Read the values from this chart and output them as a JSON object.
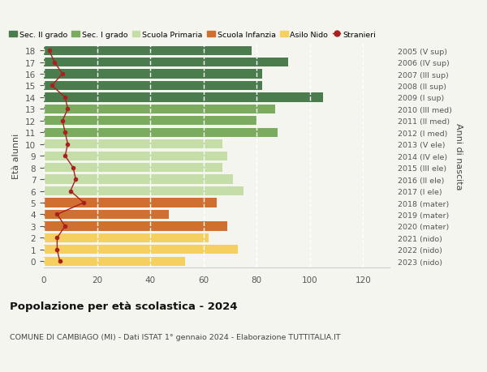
{
  "ages": [
    18,
    17,
    16,
    15,
    14,
    13,
    12,
    11,
    10,
    9,
    8,
    7,
    6,
    5,
    4,
    3,
    2,
    1,
    0
  ],
  "right_labels": [
    "2005 (V sup)",
    "2006 (IV sup)",
    "2007 (III sup)",
    "2008 (II sup)",
    "2009 (I sup)",
    "2010 (III med)",
    "2011 (II med)",
    "2012 (I med)",
    "2013 (V ele)",
    "2014 (IV ele)",
    "2015 (III ele)",
    "2016 (II ele)",
    "2017 (I ele)",
    "2018 (mater)",
    "2019 (mater)",
    "2020 (mater)",
    "2021 (nido)",
    "2022 (nido)",
    "2023 (nido)"
  ],
  "bar_values": [
    78,
    92,
    82,
    82,
    105,
    87,
    80,
    88,
    67,
    69,
    67,
    71,
    75,
    65,
    47,
    69,
    62,
    73,
    53
  ],
  "bar_colors": [
    "#4a7c4e",
    "#4a7c4e",
    "#4a7c4e",
    "#4a7c4e",
    "#4a7c4e",
    "#7aab5e",
    "#7aab5e",
    "#7aab5e",
    "#c5dea8",
    "#c5dea8",
    "#c5dea8",
    "#c5dea8",
    "#c5dea8",
    "#d07030",
    "#d07030",
    "#d07030",
    "#f5d060",
    "#f5d060",
    "#f5d060"
  ],
  "stranieri_values": [
    2,
    4,
    7,
    3,
    8,
    9,
    7,
    8,
    9,
    8,
    11,
    12,
    10,
    15,
    5,
    8,
    5,
    5,
    6
  ],
  "stranieri_color": "#aa2020",
  "legend_items": [
    {
      "label": "Sec. II grado",
      "color": "#4a7c4e"
    },
    {
      "label": "Sec. I grado",
      "color": "#7aab5e"
    },
    {
      "label": "Scuola Primaria",
      "color": "#c5dea8"
    },
    {
      "label": "Scuola Infanzia",
      "color": "#d07030"
    },
    {
      "label": "Asilo Nido",
      "color": "#f5d060"
    },
    {
      "label": "Stranieri",
      "color": "#aa2020"
    }
  ],
  "xlabel_vals": [
    0,
    20,
    40,
    60,
    80,
    100,
    120
  ],
  "xlim": [
    0,
    130
  ],
  "ylim": [
    -0.55,
    18.55
  ],
  "ylabel_left": "Età alunni",
  "ylabel_right": "Anni di nascita",
  "title": "Popolazione per età scolastica - 2024",
  "subtitle": "COMUNE DI CAMBIAGO (MI) - Dati ISTAT 1° gennaio 2024 - Elaborazione TUTTITALIA.IT",
  "bg_color": "#f5f5f0",
  "bar_height": 0.78,
  "fig_width": 6.0,
  "fig_height": 4.6,
  "dpi": 100
}
